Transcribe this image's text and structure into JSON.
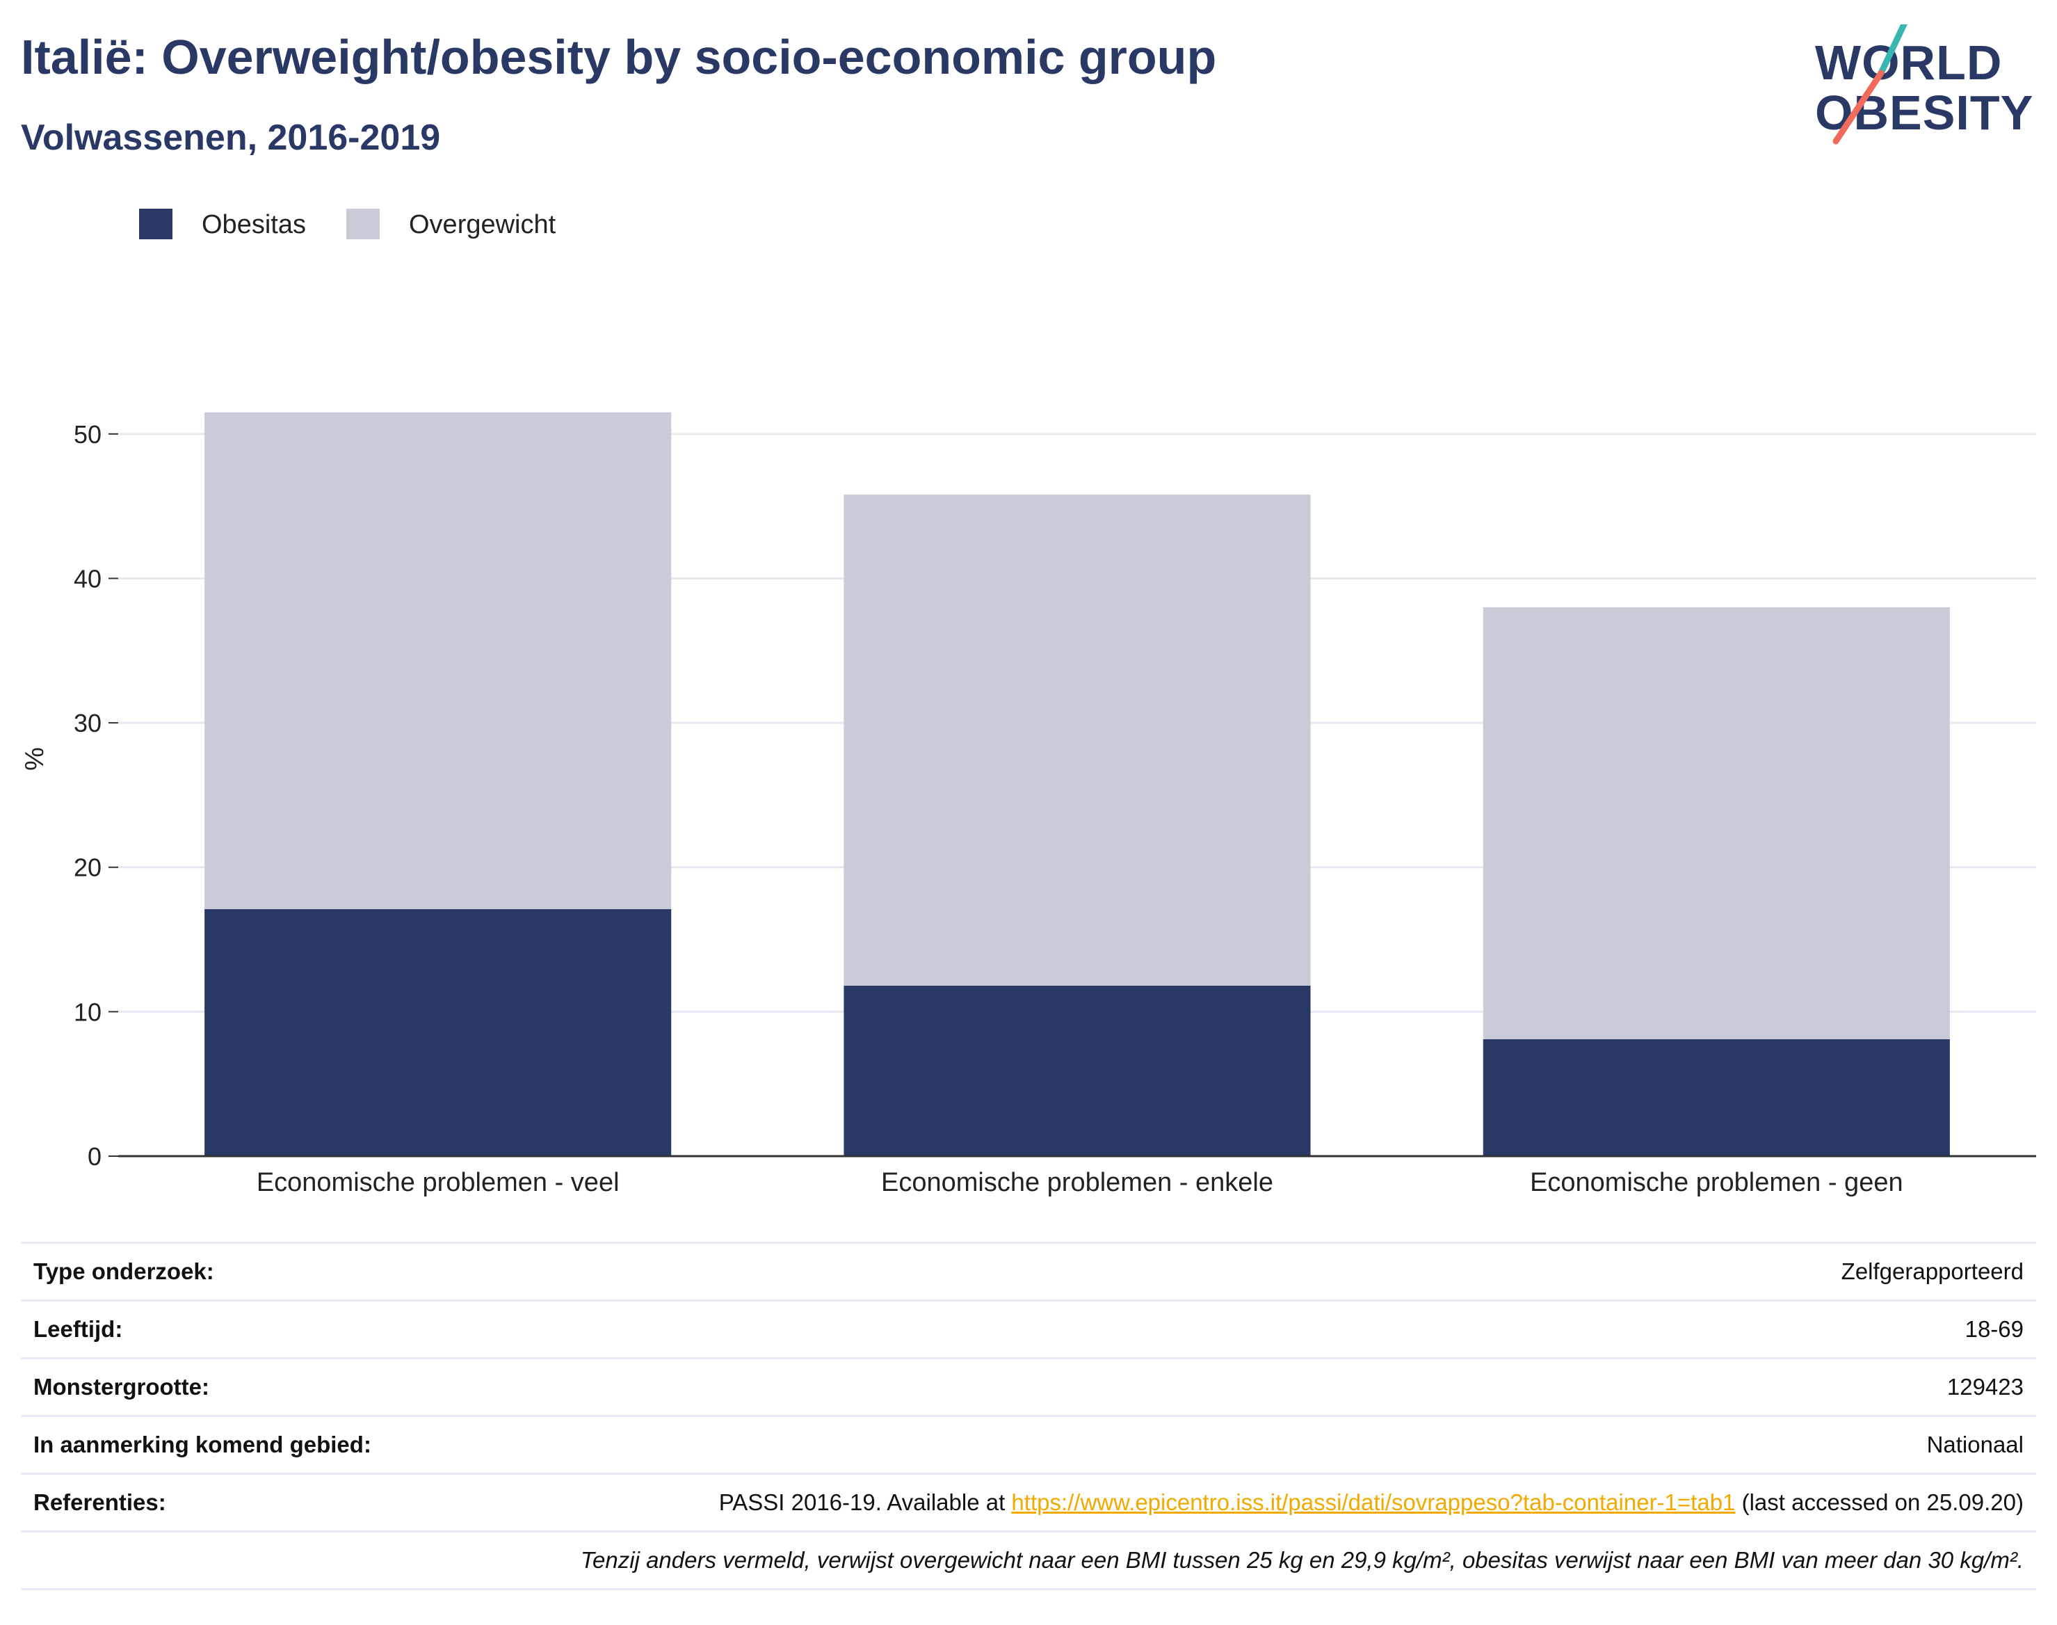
{
  "header": {
    "title": "Italië: Overweight/obesity by socio-economic group",
    "subtitle": "Volwassenen, 2016-2019"
  },
  "logo": {
    "line1": "WORLD",
    "line2": "OBESITY",
    "slash_colors": [
      "#3ab6b0",
      "#ef6b5b"
    ]
  },
  "legend": [
    {
      "label": "Obesitas",
      "color": "#2a3865"
    },
    {
      "label": "Overgewicht",
      "color": "#c9ccd8"
    }
  ],
  "chart_data": {
    "type": "bar",
    "stacked": true,
    "categories": [
      "Economische problemen - veel",
      "Economische problemen - enkele",
      "Economische problemen - geen"
    ],
    "series": [
      {
        "name": "Obesitas",
        "color": "#2a3865",
        "values": [
          17.1,
          11.8,
          8.1
        ]
      },
      {
        "name": "Overgewicht",
        "color": "#c9ccd8",
        "values": [
          34.4,
          34.0,
          29.9
        ]
      }
    ],
    "ylabel": "%",
    "yticks": [
      0,
      10,
      20,
      30,
      40,
      50
    ],
    "ylim": [
      0,
      55
    ],
    "grid": true,
    "legend_position": "top-left"
  },
  "info": {
    "rows": [
      {
        "label": "Type onderzoek:",
        "value": "Zelfgerapporteerd"
      },
      {
        "label": "Leeftijd:",
        "value": "18-69"
      },
      {
        "label": "Monstergrootte:",
        "value": "129423"
      },
      {
        "label": "In aanmerking komend gebied:",
        "value": "Nationaal"
      }
    ],
    "reference": {
      "label": "Referenties:",
      "prefix": "PASSI 2016-19. Available at ",
      "link": "https://www.epicentro.iss.it/passi/dati/sovrappeso?tab-container-1=tab1",
      "suffix": " (last accessed on 25.09.20)"
    },
    "note": "Tenzij anders vermeld, verwijst overgewicht naar een BMI tussen 25 kg en 29,9 kg/m², obesitas verwijst naar een BMI van meer dan 30 kg/m²."
  }
}
